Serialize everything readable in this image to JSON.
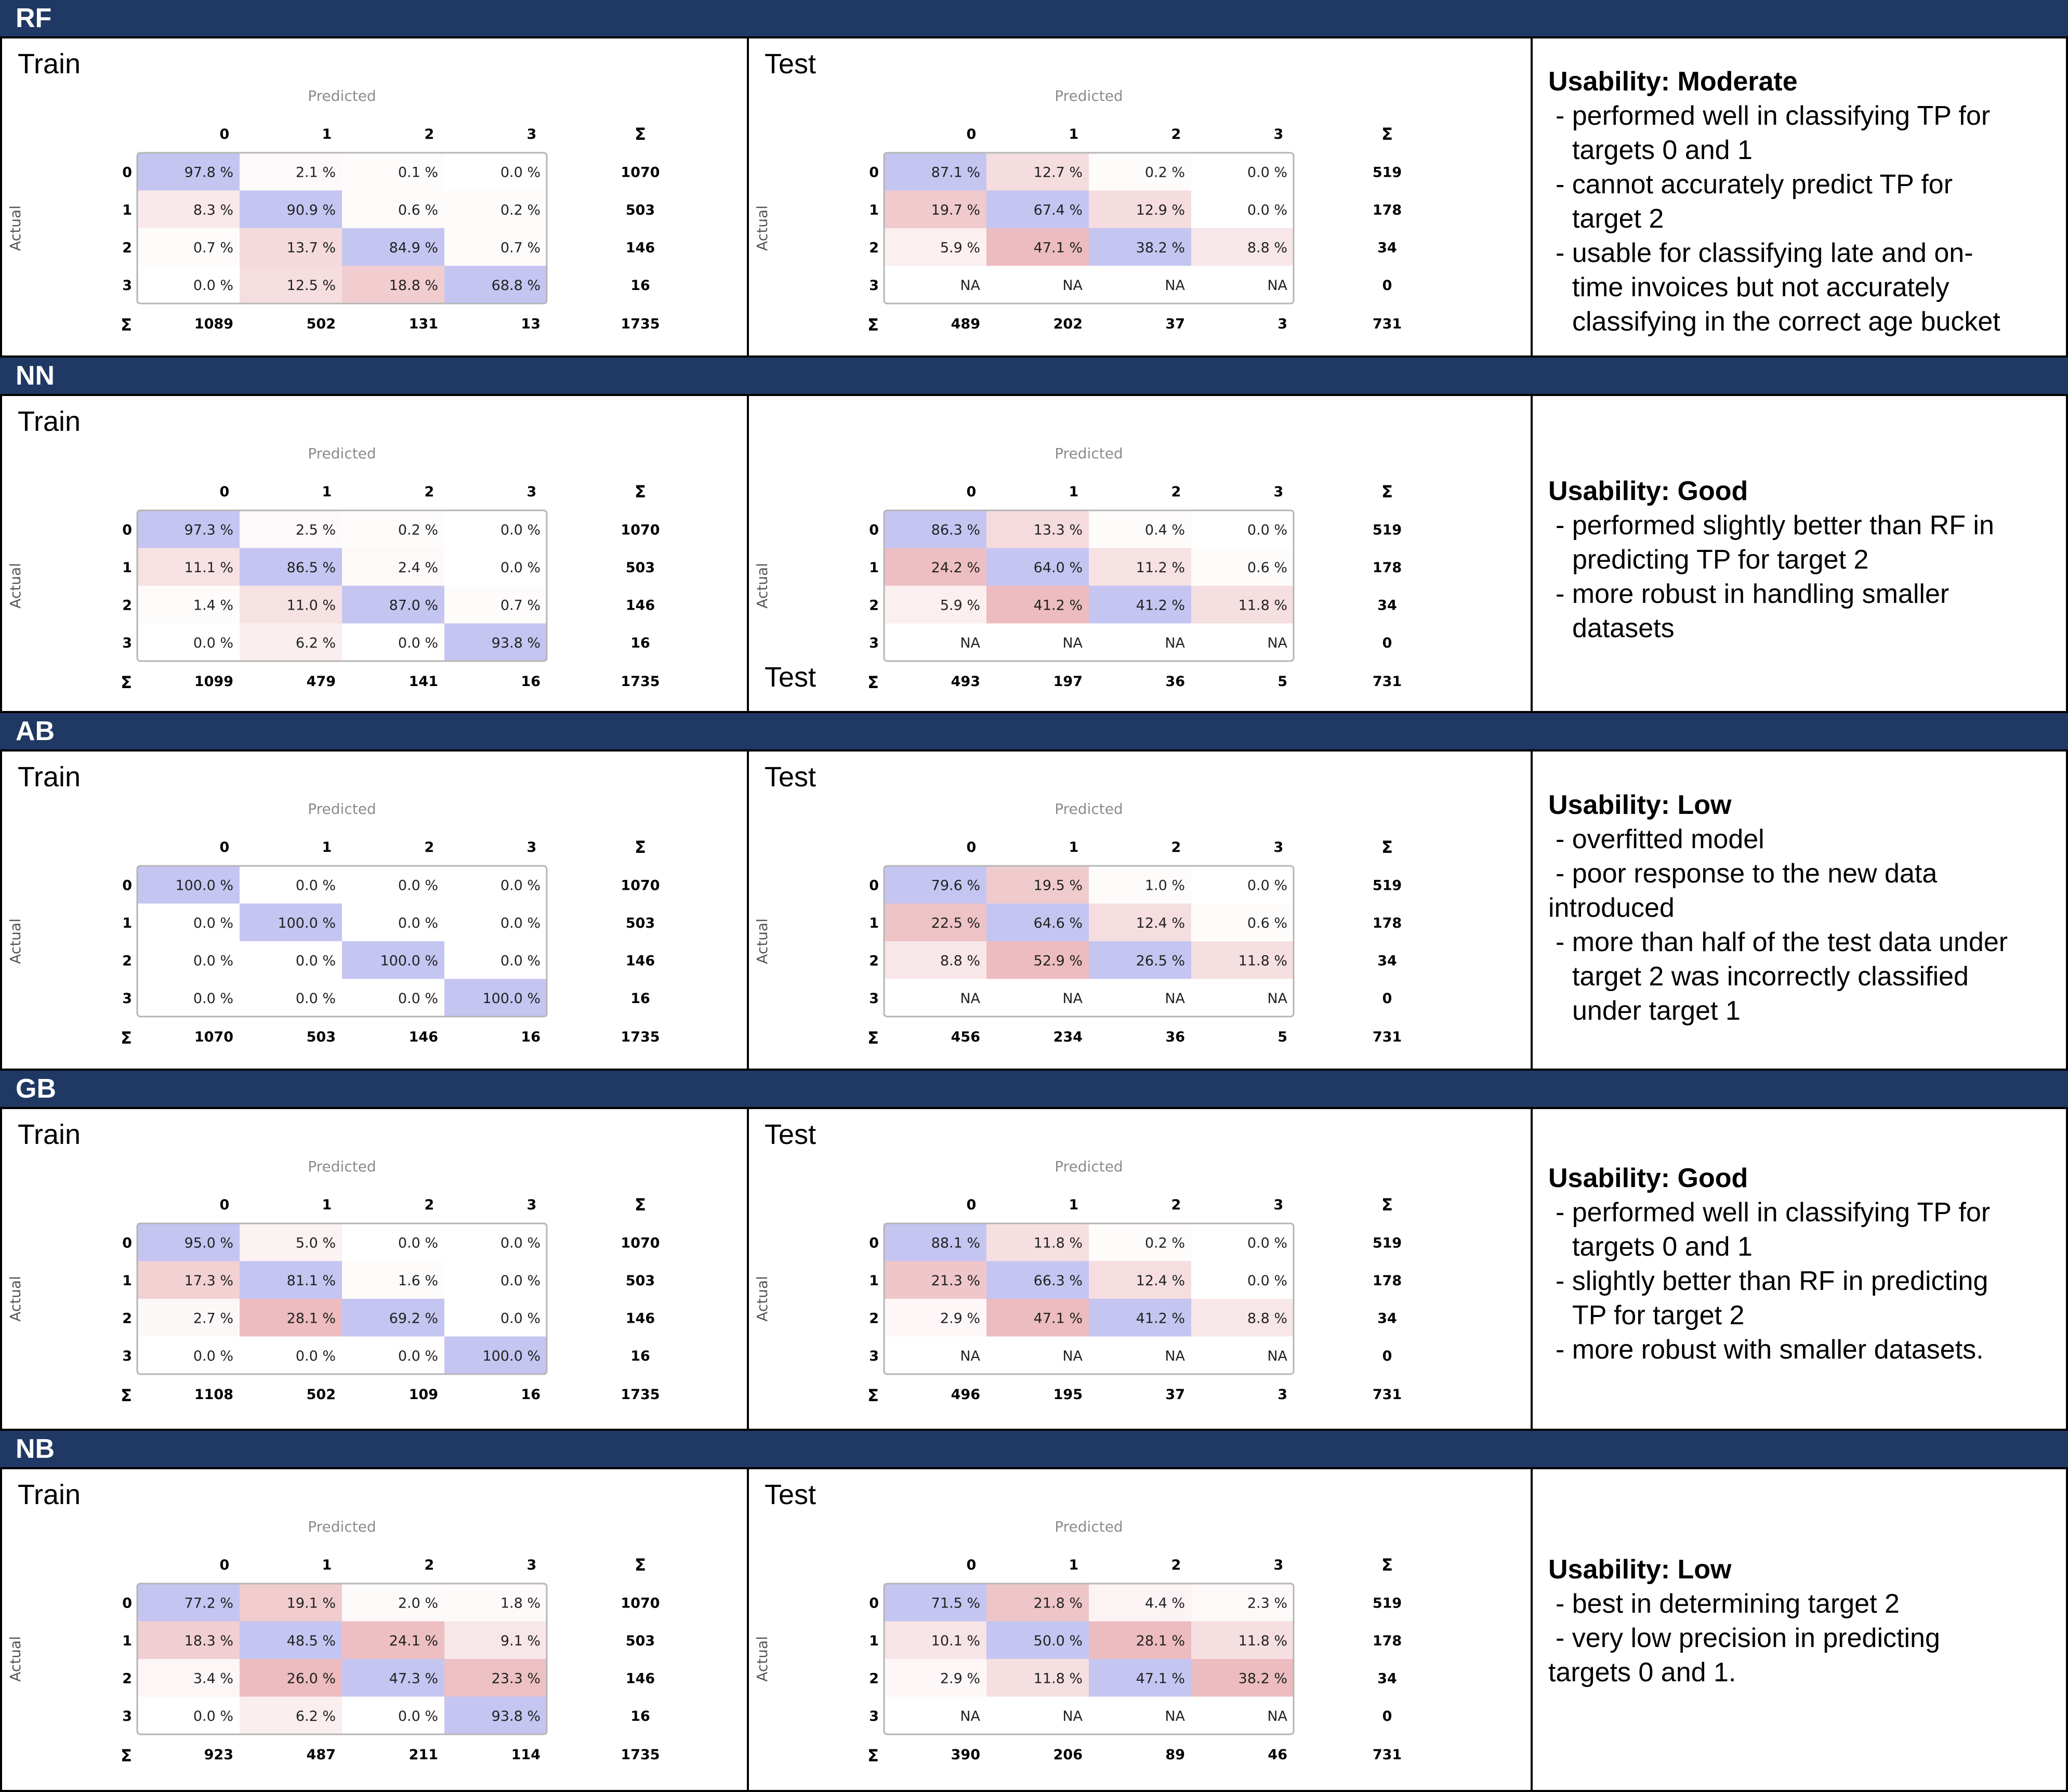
{
  "colors": {
    "header_bg": "#1f3864",
    "header_text": "#ffffff",
    "correct_high": "#c5c5f2",
    "error_high": "#ecbcc0",
    "border": "#000000"
  },
  "train_label": "Train",
  "test_label": "Test",
  "cm_text": {
    "predicted": "Predicted",
    "actual": "Actual",
    "sigma": "Σ",
    "classes": [
      "0",
      "1",
      "2",
      "3"
    ]
  },
  "chart_data": [
    {
      "type": "heatmap",
      "model": "RF",
      "split": "Train",
      "rows": [
        [
          "97.8 %",
          "2.1 %",
          "0.1 %",
          "0.0 %"
        ],
        [
          "8.3 %",
          "90.9 %",
          "0.6 %",
          "0.2 %"
        ],
        [
          "0.7 %",
          "13.7 %",
          "84.9 %",
          "0.7 %"
        ],
        [
          "0.0 %",
          "12.5 %",
          "18.8 %",
          "68.8 %"
        ]
      ],
      "row_totals": [
        "1070",
        "503",
        "146",
        "16"
      ],
      "col_totals": [
        "1089",
        "502",
        "131",
        "13"
      ],
      "grand_total": "1735"
    },
    {
      "type": "heatmap",
      "model": "RF",
      "split": "Test",
      "rows": [
        [
          "87.1 %",
          "12.7 %",
          "0.2 %",
          "0.0 %"
        ],
        [
          "19.7 %",
          "67.4 %",
          "12.9 %",
          "0.0 %"
        ],
        [
          "5.9 %",
          "47.1 %",
          "38.2 %",
          "8.8 %"
        ],
        [
          "NA",
          "NA",
          "NA",
          "NA"
        ]
      ],
      "row_totals": [
        "519",
        "178",
        "34",
        "0"
      ],
      "col_totals": [
        "489",
        "202",
        "37",
        "3"
      ],
      "grand_total": "731"
    },
    {
      "type": "heatmap",
      "model": "NN",
      "split": "Train",
      "rows": [
        [
          "97.3 %",
          "2.5 %",
          "0.2 %",
          "0.0 %"
        ],
        [
          "11.1 %",
          "86.5 %",
          "2.4 %",
          "0.0 %"
        ],
        [
          "1.4 %",
          "11.0 %",
          "87.0 %",
          "0.7 %"
        ],
        [
          "0.0 %",
          "6.2 %",
          "0.0 %",
          "93.8 %"
        ]
      ],
      "row_totals": [
        "1070",
        "503",
        "146",
        "16"
      ],
      "col_totals": [
        "1099",
        "479",
        "141",
        "16"
      ],
      "grand_total": "1735"
    },
    {
      "type": "heatmap",
      "model": "NN",
      "split": "Test",
      "rows": [
        [
          "86.3 %",
          "13.3 %",
          "0.4 %",
          "0.0 %"
        ],
        [
          "24.2 %",
          "64.0 %",
          "11.2 %",
          "0.6 %"
        ],
        [
          "5.9 %",
          "41.2 %",
          "41.2 %",
          "11.8 %"
        ],
        [
          "NA",
          "NA",
          "NA",
          "NA"
        ]
      ],
      "row_totals": [
        "519",
        "178",
        "34",
        "0"
      ],
      "col_totals": [
        "493",
        "197",
        "36",
        "5"
      ],
      "grand_total": "731"
    },
    {
      "type": "heatmap",
      "model": "AB",
      "split": "Train",
      "rows": [
        [
          "100.0 %",
          "0.0 %",
          "0.0 %",
          "0.0 %"
        ],
        [
          "0.0 %",
          "100.0 %",
          "0.0 %",
          "0.0 %"
        ],
        [
          "0.0 %",
          "0.0 %",
          "100.0 %",
          "0.0 %"
        ],
        [
          "0.0 %",
          "0.0 %",
          "0.0 %",
          "100.0 %"
        ]
      ],
      "row_totals": [
        "1070",
        "503",
        "146",
        "16"
      ],
      "col_totals": [
        "1070",
        "503",
        "146",
        "16"
      ],
      "grand_total": "1735"
    },
    {
      "type": "heatmap",
      "model": "AB",
      "split": "Test",
      "rows": [
        [
          "79.6 %",
          "19.5 %",
          "1.0 %",
          "0.0 %"
        ],
        [
          "22.5 %",
          "64.6 %",
          "12.4 %",
          "0.6 %"
        ],
        [
          "8.8 %",
          "52.9 %",
          "26.5 %",
          "11.8 %"
        ],
        [
          "NA",
          "NA",
          "NA",
          "NA"
        ]
      ],
      "row_totals": [
        "519",
        "178",
        "34",
        "0"
      ],
      "col_totals": [
        "456",
        "234",
        "36",
        "5"
      ],
      "grand_total": "731"
    },
    {
      "type": "heatmap",
      "model": "GB",
      "split": "Train",
      "rows": [
        [
          "95.0 %",
          "5.0 %",
          "0.0 %",
          "0.0 %"
        ],
        [
          "17.3 %",
          "81.1 %",
          "1.6 %",
          "0.0 %"
        ],
        [
          "2.7 %",
          "28.1 %",
          "69.2 %",
          "0.0 %"
        ],
        [
          "0.0 %",
          "0.0 %",
          "0.0 %",
          "100.0 %"
        ]
      ],
      "row_totals": [
        "1070",
        "503",
        "146",
        "16"
      ],
      "col_totals": [
        "1108",
        "502",
        "109",
        "16"
      ],
      "grand_total": "1735"
    },
    {
      "type": "heatmap",
      "model": "GB",
      "split": "Test",
      "rows": [
        [
          "88.1 %",
          "11.8 %",
          "0.2 %",
          "0.0 %"
        ],
        [
          "21.3 %",
          "66.3 %",
          "12.4 %",
          "0.0 %"
        ],
        [
          "2.9 %",
          "47.1 %",
          "41.2 %",
          "8.8 %"
        ],
        [
          "NA",
          "NA",
          "NA",
          "NA"
        ]
      ],
      "row_totals": [
        "519",
        "178",
        "34",
        "0"
      ],
      "col_totals": [
        "496",
        "195",
        "37",
        "3"
      ],
      "grand_total": "731"
    },
    {
      "type": "heatmap",
      "model": "NB",
      "split": "Train",
      "rows": [
        [
          "77.2 %",
          "19.1 %",
          "2.0 %",
          "1.8 %"
        ],
        [
          "18.3 %",
          "48.5 %",
          "24.1 %",
          "9.1 %"
        ],
        [
          "3.4 %",
          "26.0 %",
          "47.3 %",
          "23.3 %"
        ],
        [
          "0.0 %",
          "6.2 %",
          "0.0 %",
          "93.8 %"
        ]
      ],
      "row_totals": [
        "1070",
        "503",
        "146",
        "16"
      ],
      "col_totals": [
        "923",
        "487",
        "211",
        "114"
      ],
      "grand_total": "1735"
    },
    {
      "type": "heatmap",
      "model": "NB",
      "split": "Test",
      "rows": [
        [
          "71.5 %",
          "21.8 %",
          "4.4 %",
          "2.3 %"
        ],
        [
          "10.1 %",
          "50.0 %",
          "28.1 %",
          "11.8 %"
        ],
        [
          "2.9 %",
          "11.8 %",
          "47.1 %",
          "38.2 %"
        ],
        [
          "NA",
          "NA",
          "NA",
          "NA"
        ]
      ],
      "row_totals": [
        "519",
        "178",
        "34",
        "0"
      ],
      "col_totals": [
        "390",
        "206",
        "89",
        "46"
      ],
      "grand_total": "731"
    }
  ],
  "sections": [
    {
      "model": "RF",
      "usability": "Usability: Moderate",
      "notes": [
        "- performed well in classifying TP for",
        "  targets 0 and 1",
        "- cannot accurately predict TP for",
        "  target 2",
        "- usable for classifying late and on-",
        "  time invoices but not accurately",
        "  classifying in the correct age bucket"
      ]
    },
    {
      "model": "NN",
      "usability": "Usability: Good",
      "notes": [
        "- performed slightly better than RF in",
        "  predicting TP for target 2",
        "- more robust in handling smaller",
        "  datasets"
      ]
    },
    {
      "model": "AB",
      "usability": "Usability: Low",
      "notes": [
        "- overfitted model",
        "- poor response to the new data",
        "introduced",
        "- more than half of the test data under",
        "  target 2 was incorrectly classified",
        "  under target 1"
      ]
    },
    {
      "model": "GB",
      "usability": "Usability: Good",
      "notes": [
        "- performed well in classifying TP for",
        "  targets 0 and 1",
        "- slightly better than RF in predicting",
        "  TP for target 2",
        "- more robust with smaller datasets."
      ]
    },
    {
      "model": "NB",
      "usability": "Usability: Low",
      "notes": [
        "- best in determining target 2",
        "- very low precision in predicting",
        "targets 0 and 1."
      ]
    }
  ]
}
